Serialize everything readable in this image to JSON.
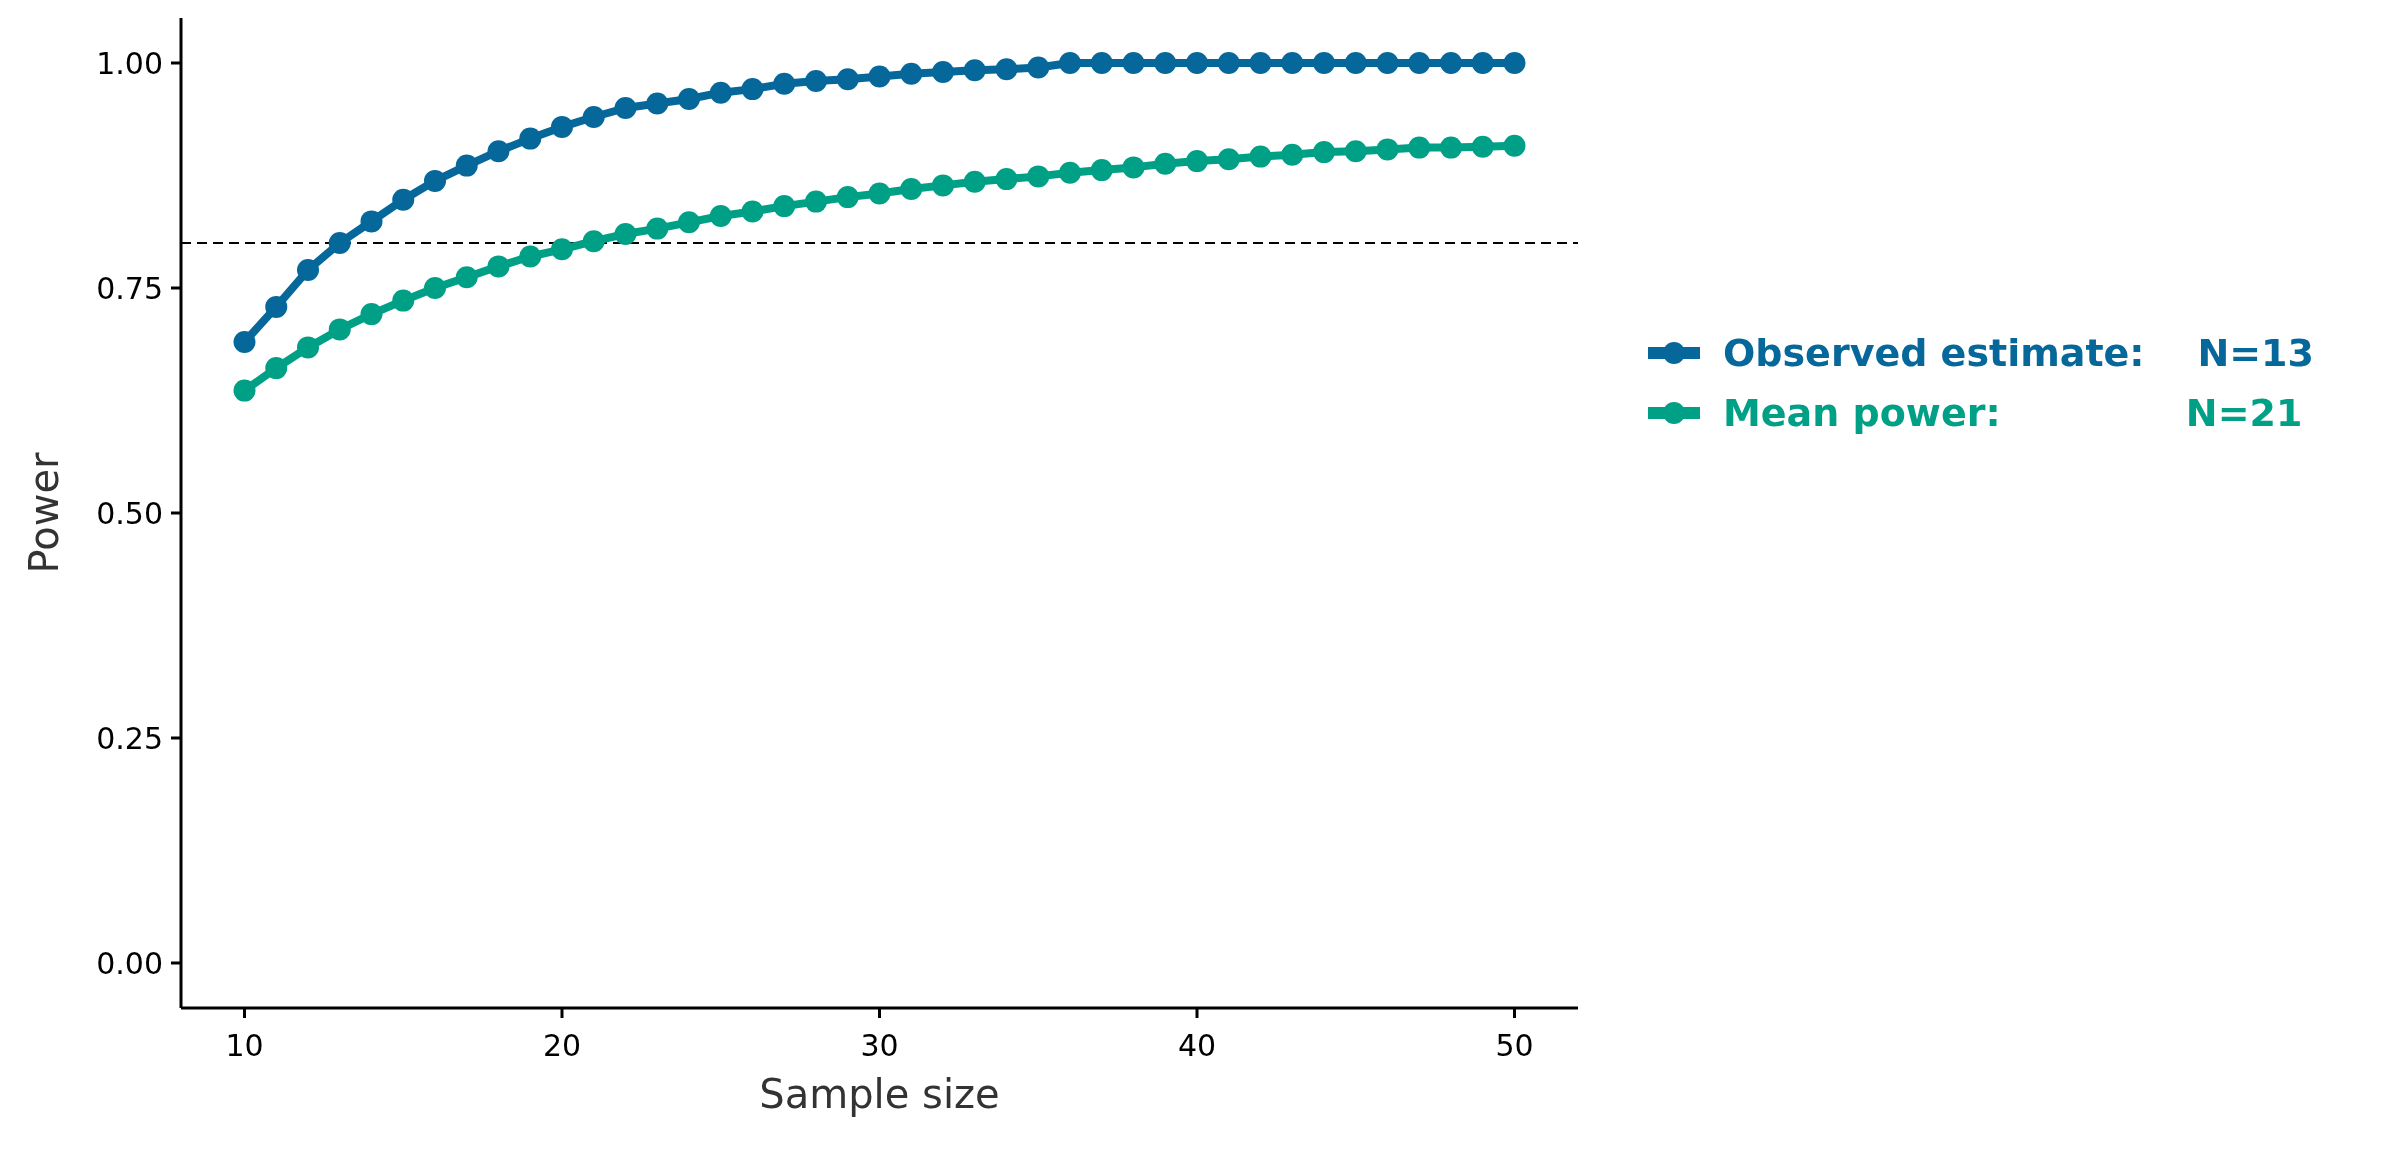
{
  "chart_data": {
    "type": "line",
    "xlabel": "Sample size",
    "ylabel": "Power",
    "x": [
      10,
      11,
      12,
      13,
      14,
      15,
      16,
      17,
      18,
      19,
      20,
      21,
      22,
      23,
      24,
      25,
      26,
      27,
      28,
      29,
      30,
      31,
      32,
      33,
      34,
      35,
      36,
      37,
      38,
      39,
      40,
      41,
      42,
      43,
      44,
      45,
      46,
      47,
      48,
      49,
      50
    ],
    "series": [
      {
        "name": "Observed estimate:    N=13",
        "color": "#05679a",
        "values": [
          0.69,
          0.729,
          0.77,
          0.8,
          0.824,
          0.848,
          0.869,
          0.886,
          0.902,
          0.916,
          0.929,
          0.94,
          0.95,
          0.955,
          0.96,
          0.967,
          0.971,
          0.977,
          0.98,
          0.982,
          0.985,
          0.988,
          0.99,
          0.992,
          0.993,
          0.995,
          1,
          1,
          1,
          1,
          1,
          1,
          1,
          1,
          1,
          1,
          1,
          1,
          1,
          1,
          1
        ]
      },
      {
        "name": "Mean power:              N=21",
        "color": "#00a087",
        "values": [
          0.636,
          0.661,
          0.684,
          0.704,
          0.721,
          0.736,
          0.75,
          0.762,
          0.774,
          0.785,
          0.793,
          0.802,
          0.81,
          0.816,
          0.823,
          0.83,
          0.835,
          0.841,
          0.846,
          0.851,
          0.855,
          0.86,
          0.864,
          0.868,
          0.871,
          0.874,
          0.878,
          0.881,
          0.884,
          0.888,
          0.891,
          0.893,
          0.896,
          0.898,
          0.901,
          0.902,
          0.904,
          0.906,
          0.906,
          0.907,
          0.908
        ]
      }
    ],
    "xlim": [
      8,
      52
    ],
    "xticks": [
      10,
      20,
      30,
      40,
      50
    ],
    "ylim": [
      -0.05,
      1.05
    ],
    "yticks": [
      {
        "value": 0,
        "label": "0.00"
      },
      {
        "value": 0.25,
        "label": "0.25"
      },
      {
        "value": 0.5,
        "label": "0.50"
      },
      {
        "value": 0.75,
        "label": "0.75"
      },
      {
        "value": 1,
        "label": "1.00"
      }
    ],
    "ref_lines": [
      {
        "axis": "y",
        "value": 0.8,
        "line_style": "dashed",
        "color": "#000000"
      }
    ],
    "marker": "circle",
    "line_style": "solid",
    "legend": "right",
    "grid": false
  }
}
